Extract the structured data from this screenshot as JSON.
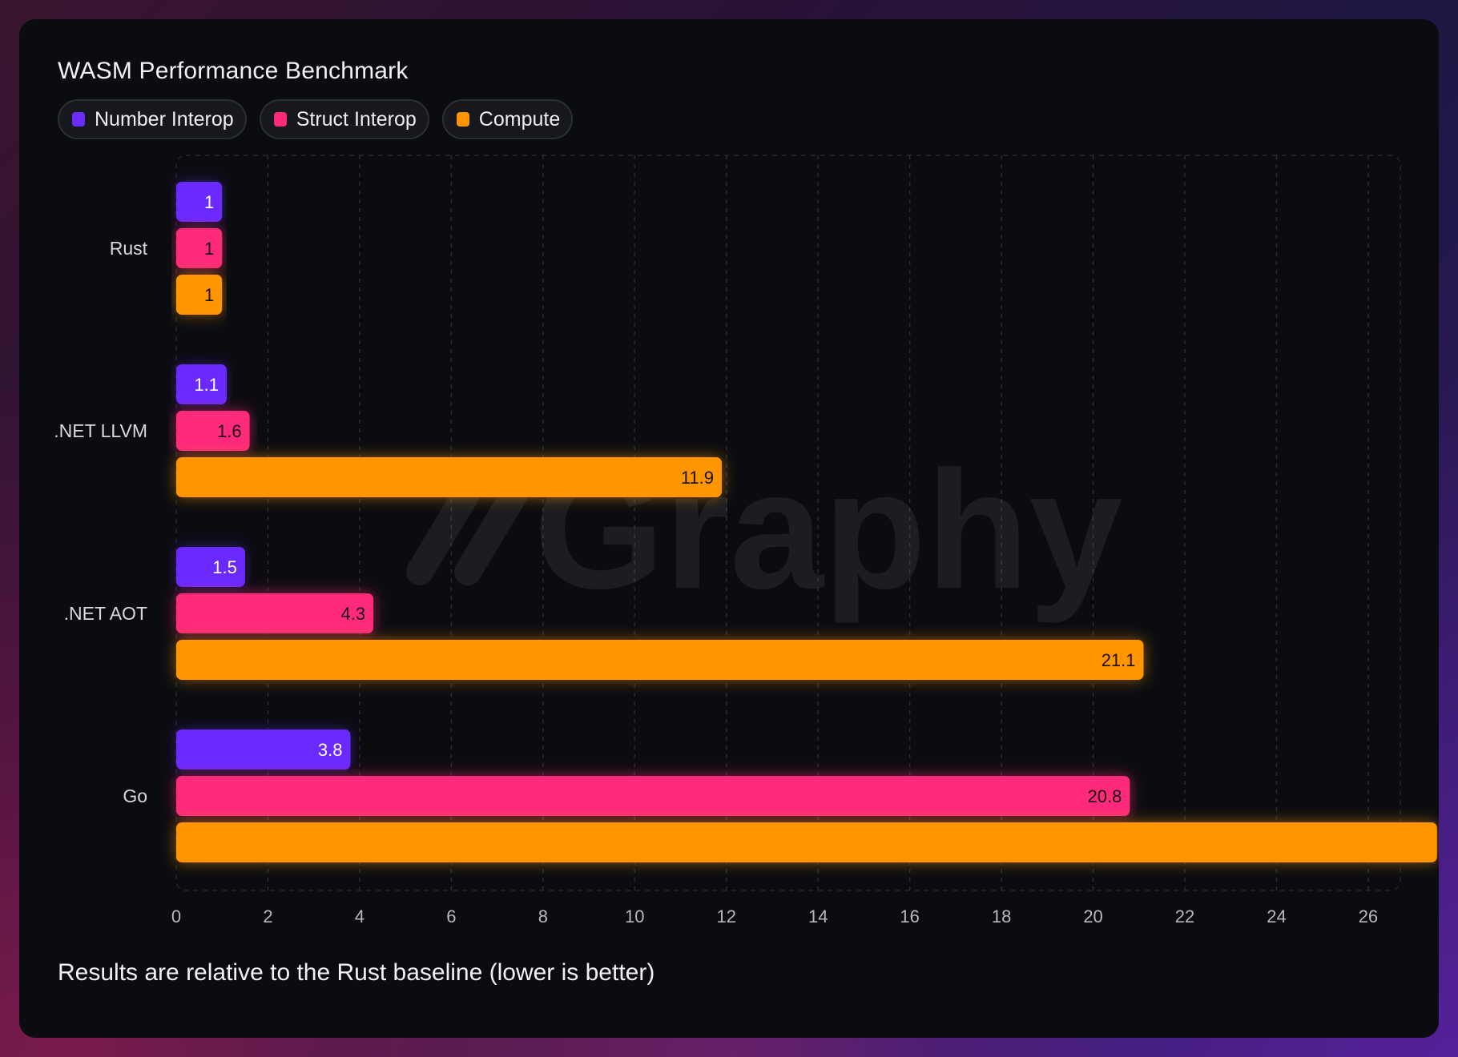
{
  "chart_data": {
    "type": "bar",
    "orientation": "horizontal",
    "title": "WASM Performance Benchmark",
    "footnote": "Results are relative to the Rust baseline (lower is better)",
    "categories": [
      "Rust",
      ".NET LLVM",
      ".NET AOT",
      "Go"
    ],
    "series": [
      {
        "name": "Number Interop",
        "color": "#6b2cff",
        "values": [
          1,
          1.1,
          1.5,
          3.8
        ],
        "label_color": "#ffffff"
      },
      {
        "name": "Struct Interop",
        "color": "#ff2a7a",
        "values": [
          1,
          1.6,
          4.3,
          20.8
        ],
        "label_color": "#1a0a12"
      },
      {
        "name": "Compute",
        "color": "#ff9500",
        "values": [
          1,
          11.9,
          21.1,
          27.5
        ],
        "label_color": "#1a1205"
      }
    ],
    "value_labels": [
      [
        "1",
        "1.1",
        "1.5",
        "3.8"
      ],
      [
        "1",
        "1.6",
        "4.3",
        "20.8"
      ],
      [
        "1",
        "11.9",
        "21.1",
        ""
      ]
    ],
    "xlim": [
      0,
      26.7
    ],
    "x_ticks": [
      0,
      2,
      4,
      6,
      8,
      10,
      12,
      14,
      16,
      18,
      20,
      22,
      24,
      26
    ],
    "grid": true,
    "legend_placement": "top-left"
  },
  "watermark": "Graphy"
}
